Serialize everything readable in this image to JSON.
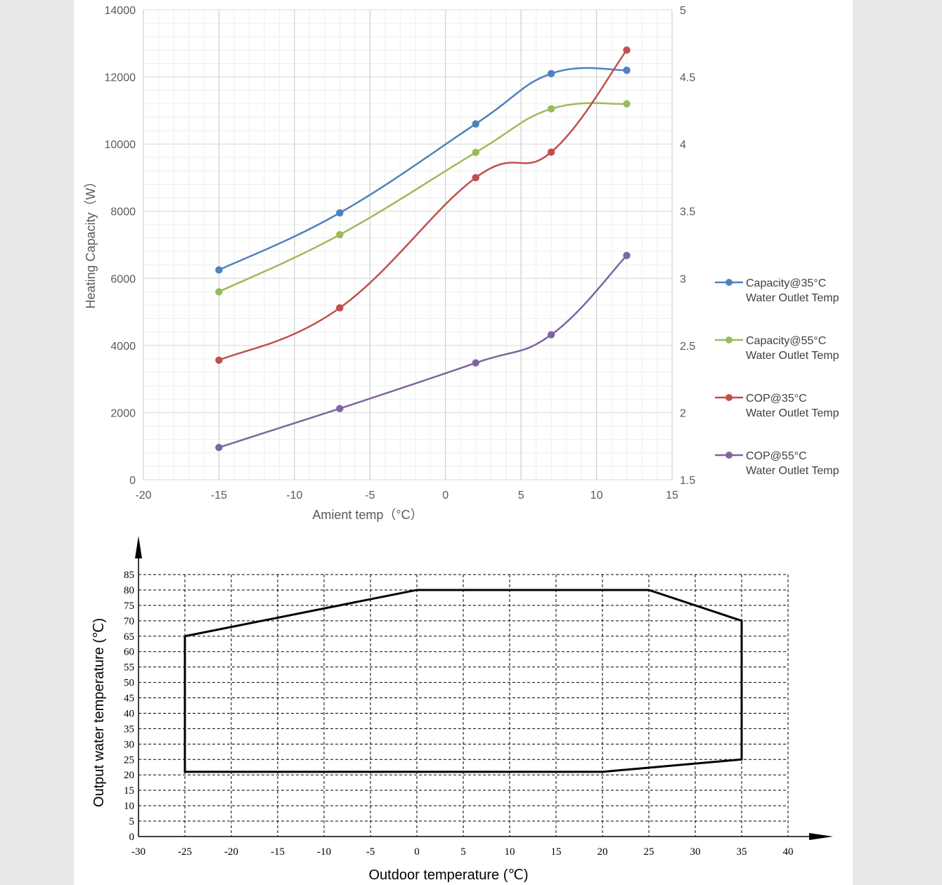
{
  "chart_data": [
    {
      "type": "line",
      "title": "",
      "xlabel": "Amient temp（°C）",
      "ylabel": "Heating Capacity（W）",
      "y2label": "",
      "xlim": [
        -20,
        15
      ],
      "ylim": [
        0,
        14000
      ],
      "y2lim": [
        1.5,
        5
      ],
      "x_ticks": [
        -20,
        -15,
        -10,
        -5,
        0,
        5,
        10,
        15
      ],
      "y_ticks": [
        0,
        2000,
        4000,
        6000,
        8000,
        10000,
        12000,
        14000
      ],
      "y2_ticks": [
        1.5,
        2,
        2.5,
        3,
        3.5,
        4,
        4.5,
        5
      ],
      "grid": true,
      "legend_position": "right",
      "series": [
        {
          "name": "Capacity@35°C",
          "name2": "Water Outlet Temp",
          "axis": "left",
          "color": "#4f81bd",
          "x": [
            -15,
            -7,
            2,
            7,
            12
          ],
          "y": [
            6250,
            7950,
            10600,
            12100,
            12200
          ]
        },
        {
          "name": "Capacity@55°C",
          "name2": "Water Outlet Temp",
          "axis": "left",
          "color": "#9bbb59",
          "x": [
            -15,
            -7,
            2,
            7,
            12
          ],
          "y": [
            5600,
            7300,
            9750,
            11050,
            11200
          ]
        },
        {
          "name": "COP@35°C",
          "name2": "Water Outlet Temp",
          "axis": "right",
          "color": "#c0504d",
          "x": [
            -15,
            -7,
            2,
            7,
            12
          ],
          "y": [
            2.39,
            2.78,
            3.75,
            3.94,
            4.7
          ]
        },
        {
          "name": "COP@55°C",
          "name2": "Water Outlet Temp",
          "axis": "right",
          "color": "#8064a2",
          "x": [
            -15,
            -7,
            2,
            7,
            12
          ],
          "y": [
            1.74,
            2.03,
            2.37,
            2.58,
            3.17
          ]
        }
      ]
    },
    {
      "type": "area",
      "title": "",
      "xlabel": "Outdoor temperature (℃)",
      "ylabel": "Output water temperature (℃)",
      "xlim": [
        -30,
        40
      ],
      "ylim": [
        0,
        85
      ],
      "x_ticks": [
        -30,
        -25,
        -20,
        -15,
        -10,
        -5,
        0,
        5,
        10,
        15,
        20,
        25,
        30,
        35,
        40
      ],
      "y_ticks": [
        0,
        5,
        10,
        15,
        20,
        25,
        30,
        35,
        40,
        45,
        50,
        55,
        60,
        65,
        70,
        75,
        80,
        85
      ],
      "grid": "dashed",
      "series": [
        {
          "name": "",
          "color": "#000000",
          "x": [
            -25,
            0,
            25,
            35,
            35,
            20,
            -25,
            -25
          ],
          "y": [
            65,
            80,
            80,
            70,
            25,
            21,
            21,
            65
          ]
        }
      ]
    }
  ]
}
